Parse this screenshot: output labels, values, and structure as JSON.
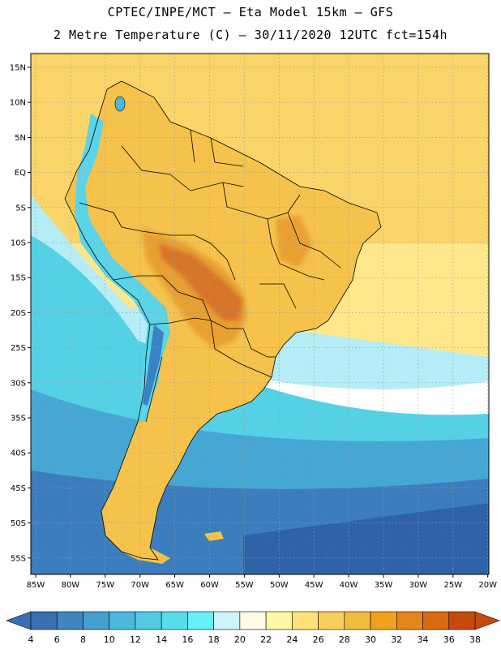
{
  "title": {
    "line1": "CPTEC/INPE/MCT —  Eta Model 15km — GFS",
    "line2": "2 Metre Temperature (C) — 30/11/2020 12UTC fct=154h"
  },
  "latitude_labels": [
    "15N",
    "10N",
    "5N",
    "EQ",
    "5S",
    "10S",
    "15S",
    "20S",
    "25S",
    "30S",
    "35S",
    "40S",
    "45S",
    "50S",
    "55S"
  ],
  "longitude_labels": [
    "85W",
    "80W",
    "75W",
    "70W",
    "65W",
    "60W",
    "55W",
    "50W",
    "45W",
    "40W",
    "35W",
    "30W",
    "25W",
    "20W"
  ],
  "colorbar": {
    "labels": [
      "4",
      "6",
      "8",
      "10",
      "12",
      "14",
      "16",
      "18",
      "20",
      "22",
      "24",
      "26",
      "28",
      "30",
      "32",
      "34",
      "36",
      "38"
    ],
    "colors": [
      "#3a6fb3",
      "#3f85c0",
      "#45a0cf",
      "#4cb8dc",
      "#53c9e2",
      "#58dbea",
      "#66f1f6",
      "#cdf3fb",
      "#fffbe6",
      "#fff6a6",
      "#ffe27a",
      "#f8cf5a",
      "#f0bd3e",
      "#f0a21c",
      "#e58718",
      "#da6a12",
      "#c74a0d"
    ]
  },
  "map": {
    "ocean_south_far": "#2f63a8",
    "ocean_south": "#3b7dbd",
    "ocean_south_mid": "#46a7d4",
    "ocean_cool": "#55d1e6",
    "ocean_transition": "#b5ecf6",
    "ocean_warm": "#ffe88c",
    "ocean_tropical": "#fad66a",
    "land_base": "#f5c24c",
    "land_hot": "#e9a030",
    "land_hottest": "#d7752a",
    "andes_cool": "#5ad4e6",
    "andes_cold": "#3b82c2"
  }
}
